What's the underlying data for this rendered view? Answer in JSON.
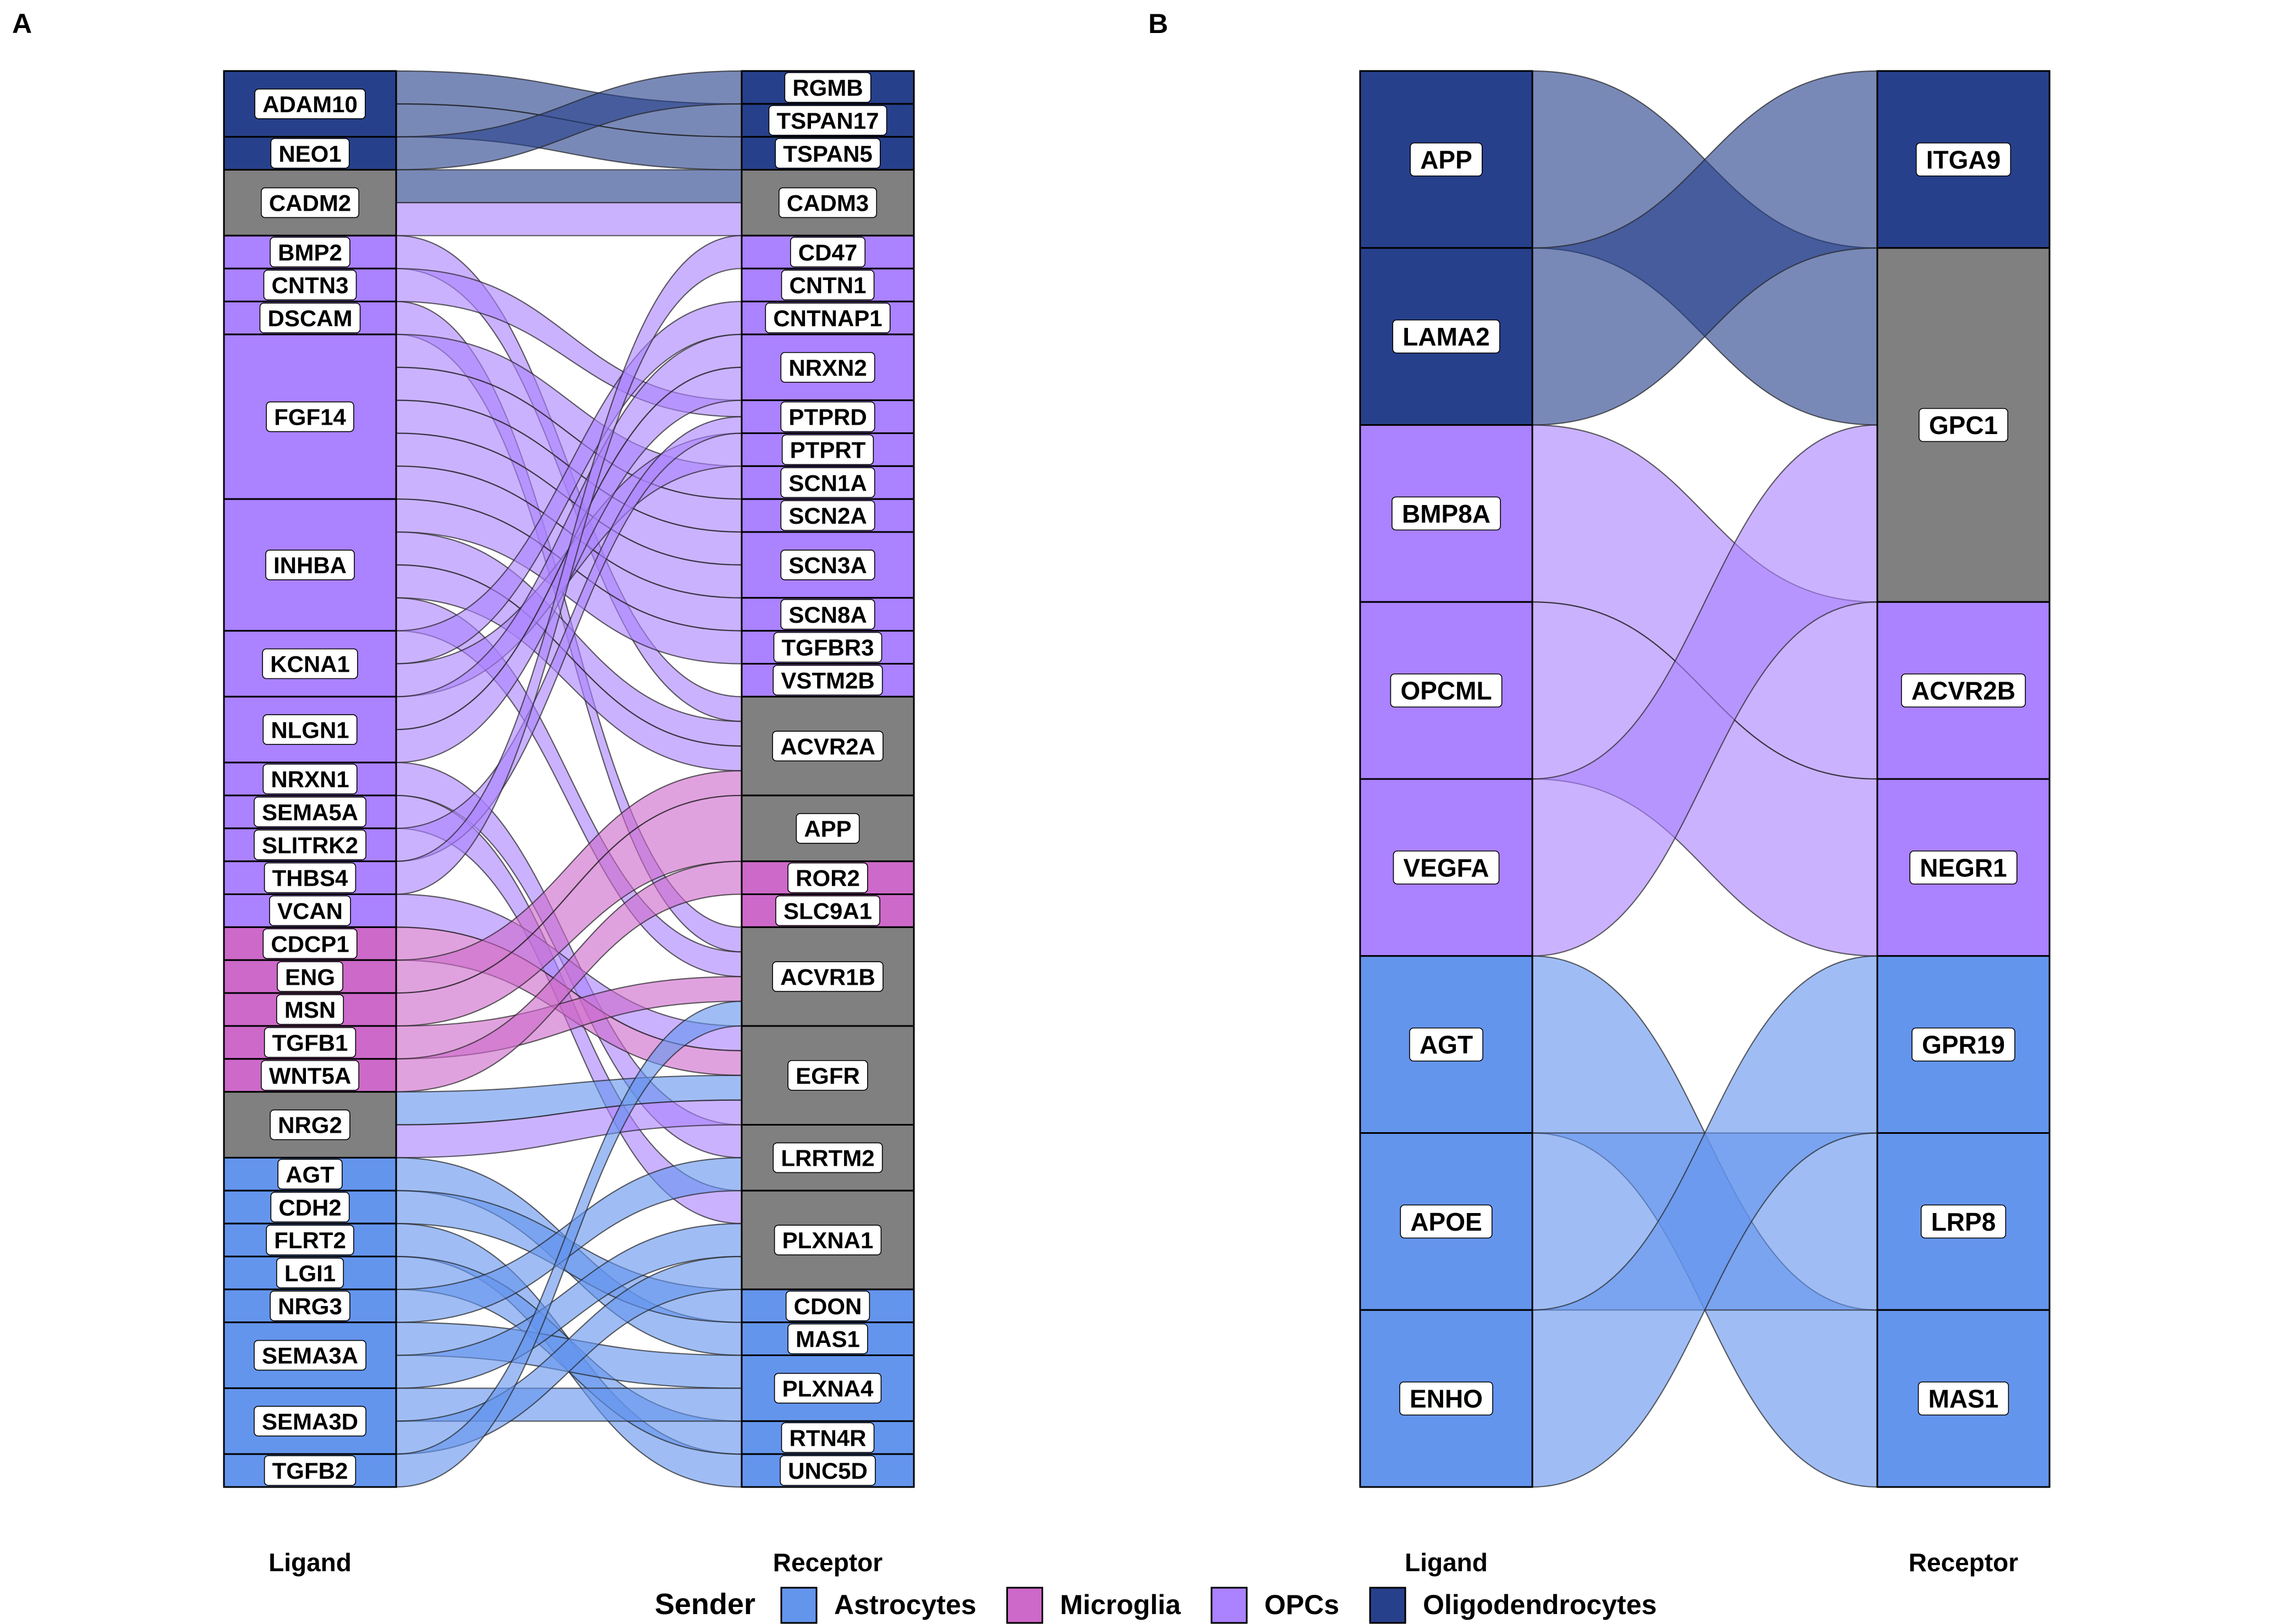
{
  "colors": {
    "Astrocytes": "#6495ED",
    "Microglia": "#CD69C9",
    "OPCs": "#AB82FF",
    "Oligodendrocytes": "#27408B",
    "Other": "#808080",
    "Box_stroke": "#000000",
    "Label_bg": "#ffffff"
  },
  "legend": {
    "title": "Sender",
    "items": [
      "Astrocytes",
      "Microglia",
      "OPCs",
      "Oligodendrocytes"
    ]
  },
  "chart_data": [
    {
      "panel": "A",
      "type": "alluvial",
      "axis_labels": [
        "Ligand",
        "Receptor"
      ],
      "ligands": [
        {
          "name": "ADAM10",
          "sender": "Oligodendrocytes",
          "weight": 2
        },
        {
          "name": "NEO1",
          "sender": "Oligodendrocytes",
          "weight": 1
        },
        {
          "name": "CADM2",
          "sender": "Other",
          "weight": 2
        },
        {
          "name": "BMP2",
          "sender": "OPCs",
          "weight": 1
        },
        {
          "name": "CNTN3",
          "sender": "OPCs",
          "weight": 1
        },
        {
          "name": "DSCAM",
          "sender": "OPCs",
          "weight": 1
        },
        {
          "name": "FGF14",
          "sender": "OPCs",
          "weight": 5
        },
        {
          "name": "INHBA",
          "sender": "OPCs",
          "weight": 4
        },
        {
          "name": "KCNA1",
          "sender": "OPCs",
          "weight": 2
        },
        {
          "name": "NLGN1",
          "sender": "OPCs",
          "weight": 2
        },
        {
          "name": "NRXN1",
          "sender": "OPCs",
          "weight": 1
        },
        {
          "name": "SEMA5A",
          "sender": "OPCs",
          "weight": 1
        },
        {
          "name": "SLITRK2",
          "sender": "OPCs",
          "weight": 1
        },
        {
          "name": "THBS4",
          "sender": "OPCs",
          "weight": 1
        },
        {
          "name": "VCAN",
          "sender": "OPCs",
          "weight": 1
        },
        {
          "name": "CDCP1",
          "sender": "Microglia",
          "weight": 1
        },
        {
          "name": "ENG",
          "sender": "Microglia",
          "weight": 1
        },
        {
          "name": "MSN",
          "sender": "Microglia",
          "weight": 1
        },
        {
          "name": "TGFB1",
          "sender": "Microglia",
          "weight": 1
        },
        {
          "name": "WNT5A",
          "sender": "Microglia",
          "weight": 1
        },
        {
          "name": "NRG2",
          "sender": "Other",
          "weight": 2
        },
        {
          "name": "AGT",
          "sender": "Astrocytes",
          "weight": 1
        },
        {
          "name": "CDH2",
          "sender": "Astrocytes",
          "weight": 1
        },
        {
          "name": "FLRT2",
          "sender": "Astrocytes",
          "weight": 1
        },
        {
          "name": "LGI1",
          "sender": "Astrocytes",
          "weight": 1
        },
        {
          "name": "NRG3",
          "sender": "Astrocytes",
          "weight": 1
        },
        {
          "name": "SEMA3A",
          "sender": "Astrocytes",
          "weight": 2
        },
        {
          "name": "SEMA3D",
          "sender": "Astrocytes",
          "weight": 2
        },
        {
          "name": "TGFB2",
          "sender": "Astrocytes",
          "weight": 1
        }
      ],
      "receptors": [
        {
          "name": "RGMB",
          "sender": "Oligodendrocytes",
          "weight": 1
        },
        {
          "name": "TSPAN17",
          "sender": "Oligodendrocytes",
          "weight": 1
        },
        {
          "name": "TSPAN5",
          "sender": "Oligodendrocytes",
          "weight": 1
        },
        {
          "name": "CADM3",
          "sender": "Other",
          "weight": 2
        },
        {
          "name": "CD47",
          "sender": "OPCs",
          "weight": 1
        },
        {
          "name": "CNTN1",
          "sender": "OPCs",
          "weight": 1
        },
        {
          "name": "CNTNAP1",
          "sender": "OPCs",
          "weight": 1
        },
        {
          "name": "NRXN2",
          "sender": "OPCs",
          "weight": 2
        },
        {
          "name": "PTPRD",
          "sender": "OPCs",
          "weight": 1
        },
        {
          "name": "PTPRT",
          "sender": "OPCs",
          "weight": 1
        },
        {
          "name": "SCN1A",
          "sender": "OPCs",
          "weight": 1
        },
        {
          "name": "SCN2A",
          "sender": "OPCs",
          "weight": 1
        },
        {
          "name": "SCN3A",
          "sender": "OPCs",
          "weight": 2
        },
        {
          "name": "SCN8A",
          "sender": "OPCs",
          "weight": 1
        },
        {
          "name": "TGFBR3",
          "sender": "OPCs",
          "weight": 1
        },
        {
          "name": "VSTM2B",
          "sender": "OPCs",
          "weight": 1
        },
        {
          "name": "ACVR2A",
          "sender": "Other",
          "weight": 3
        },
        {
          "name": "APP",
          "sender": "Other",
          "weight": 2
        },
        {
          "name": "ROR2",
          "sender": "Microglia",
          "weight": 1
        },
        {
          "name": "SLC9A1",
          "sender": "Microglia",
          "weight": 1
        },
        {
          "name": "ACVR1B",
          "sender": "Other",
          "weight": 3
        },
        {
          "name": "EGFR",
          "sender": "Other",
          "weight": 3
        },
        {
          "name": "LRRTM2",
          "sender": "Other",
          "weight": 2
        },
        {
          "name": "PLXNA1",
          "sender": "Other",
          "weight": 3
        },
        {
          "name": "CDON",
          "sender": "Astrocytes",
          "weight": 1
        },
        {
          "name": "MAS1",
          "sender": "Astrocytes",
          "weight": 1
        },
        {
          "name": "PLXNA4",
          "sender": "Astrocytes",
          "weight": 2
        },
        {
          "name": "RTN4R",
          "sender": "Astrocytes",
          "weight": 1
        },
        {
          "name": "UNC5D",
          "sender": "Astrocytes",
          "weight": 1
        }
      ],
      "links": [
        {
          "from": "ADAM10",
          "to": "TSPAN17",
          "sender": "Oligodendrocytes"
        },
        {
          "from": "ADAM10",
          "to": "TSPAN5",
          "sender": "Oligodendrocytes"
        },
        {
          "from": "NEO1",
          "to": "RGMB",
          "sender": "Oligodendrocytes"
        },
        {
          "from": "CADM2",
          "to": "CADM3",
          "sender": "Oligodendrocytes"
        },
        {
          "from": "CADM2",
          "to": "CADM3",
          "sender": "OPCs"
        },
        {
          "from": "BMP2",
          "to": "ACVR2A",
          "sender": "OPCs"
        },
        {
          "from": "CNTN3",
          "to": "PTPRD",
          "sender": "OPCs"
        },
        {
          "from": "DSCAM",
          "to": "ACVR1B",
          "sender": "OPCs"
        },
        {
          "from": "FGF14",
          "to": "SCN1A",
          "sender": "OPCs"
        },
        {
          "from": "FGF14",
          "to": "SCN2A",
          "sender": "OPCs"
        },
        {
          "from": "FGF14",
          "to": "SCN3A",
          "sender": "OPCs"
        },
        {
          "from": "FGF14",
          "to": "SCN3A",
          "sender": "OPCs"
        },
        {
          "from": "FGF14",
          "to": "SCN8A",
          "sender": "OPCs"
        },
        {
          "from": "INHBA",
          "to": "TGFBR3",
          "sender": "OPCs"
        },
        {
          "from": "INHBA",
          "to": "ACVR2A",
          "sender": "OPCs"
        },
        {
          "from": "INHBA",
          "to": "ACVR2A",
          "sender": "OPCs"
        },
        {
          "from": "INHBA",
          "to": "ACVR1B",
          "sender": "OPCs"
        },
        {
          "from": "KCNA1",
          "to": "CNTNAP1",
          "sender": "OPCs"
        },
        {
          "from": "KCNA1",
          "to": "PTPRT",
          "sender": "OPCs"
        },
        {
          "from": "NLGN1",
          "to": "NRXN2",
          "sender": "OPCs"
        },
        {
          "from": "NLGN1",
          "to": "NRXN2",
          "sender": "OPCs"
        },
        {
          "from": "NRXN1",
          "to": "LRRTM2",
          "sender": "OPCs"
        },
        {
          "from": "SEMA5A",
          "to": "PLXNA1",
          "sender": "OPCs"
        },
        {
          "from": "SLITRK2",
          "to": "PTPRD",
          "sender": "OPCs"
        },
        {
          "from": "THBS4",
          "to": "CD47",
          "sender": "OPCs"
        },
        {
          "from": "VCAN",
          "to": "EGFR",
          "sender": "OPCs"
        },
        {
          "from": "CDCP1",
          "to": "EGFR",
          "sender": "Microglia"
        },
        {
          "from": "ENG",
          "to": "ACVR2A",
          "sender": "Microglia"
        },
        {
          "from": "MSN",
          "to": "APP",
          "sender": "Microglia"
        },
        {
          "from": "TGFB1",
          "to": "ACVR1B",
          "sender": "Microglia"
        },
        {
          "from": "WNT5A",
          "to": "ROR2",
          "sender": "Microglia"
        },
        {
          "from": "NRG2",
          "to": "EGFR",
          "sender": "Astrocytes"
        },
        {
          "from": "NRG2",
          "to": "EGFR",
          "sender": "OPCs"
        },
        {
          "from": "AGT",
          "to": "MAS1",
          "sender": "Astrocytes"
        },
        {
          "from": "CDH2",
          "to": "CDON",
          "sender": "Astrocytes"
        },
        {
          "from": "FLRT2",
          "to": "UNC5D",
          "sender": "Astrocytes"
        },
        {
          "from": "LGI1",
          "to": "RTN4R",
          "sender": "Astrocytes"
        },
        {
          "from": "NRG3",
          "to": "LRRTM2",
          "sender": "Astrocytes"
        },
        {
          "from": "SEMA3A",
          "to": "PLXNA4",
          "sender": "Astrocytes"
        },
        {
          "from": "SEMA3A",
          "to": "PLXNA1",
          "sender": "Astrocytes"
        },
        {
          "from": "SEMA3D",
          "to": "PLXNA4",
          "sender": "Astrocytes"
        },
        {
          "from": "SEMA3D",
          "to": "PLXNA1",
          "sender": "Astrocytes"
        },
        {
          "from": "TGFB2",
          "to": "ACVR1B",
          "sender": "Astrocytes"
        }
      ]
    },
    {
      "panel": "B",
      "type": "alluvial",
      "axis_labels": [
        "Ligand",
        "Receptor"
      ],
      "ligands": [
        {
          "name": "APP",
          "sender": "Oligodendrocytes",
          "weight": 1
        },
        {
          "name": "LAMA2",
          "sender": "Oligodendrocytes",
          "weight": 1
        },
        {
          "name": "BMP8A",
          "sender": "OPCs",
          "weight": 1
        },
        {
          "name": "OPCML",
          "sender": "OPCs",
          "weight": 1
        },
        {
          "name": "VEGFA",
          "sender": "OPCs",
          "weight": 1
        },
        {
          "name": "AGT",
          "sender": "Astrocytes",
          "weight": 1
        },
        {
          "name": "APOE",
          "sender": "Astrocytes",
          "weight": 1
        },
        {
          "name": "ENHO",
          "sender": "Astrocytes",
          "weight": 1
        }
      ],
      "receptors": [
        {
          "name": "ITGA9",
          "sender": "Oligodendrocytes",
          "weight": 1
        },
        {
          "name": "GPC1",
          "sender": "Other",
          "weight": 2
        },
        {
          "name": "ACVR2B",
          "sender": "OPCs",
          "weight": 1
        },
        {
          "name": "NEGR1",
          "sender": "OPCs",
          "weight": 1
        },
        {
          "name": "GPR19",
          "sender": "Astrocytes",
          "weight": 1
        },
        {
          "name": "LRP8",
          "sender": "Astrocytes",
          "weight": 1
        },
        {
          "name": "MAS1",
          "sender": "Astrocytes",
          "weight": 1
        }
      ],
      "links": [
        {
          "from": "APP",
          "to": "GPC1",
          "sender": "Oligodendrocytes"
        },
        {
          "from": "LAMA2",
          "to": "ITGA9",
          "sender": "Oligodendrocytes"
        },
        {
          "from": "BMP8A",
          "to": "ACVR2B",
          "sender": "OPCs"
        },
        {
          "from": "OPCML",
          "to": "NEGR1",
          "sender": "OPCs"
        },
        {
          "from": "VEGFA",
          "to": "GPC1",
          "sender": "OPCs"
        },
        {
          "from": "AGT",
          "to": "MAS1",
          "sender": "Astrocytes"
        },
        {
          "from": "APOE",
          "to": "LRP8",
          "sender": "Astrocytes"
        },
        {
          "from": "ENHO",
          "to": "GPR19",
          "sender": "Astrocytes"
        }
      ]
    }
  ]
}
